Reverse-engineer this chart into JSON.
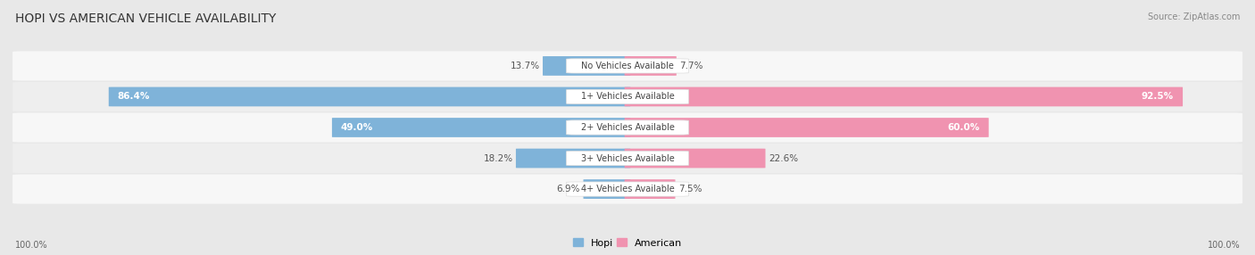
{
  "title": "HOPI VS AMERICAN VEHICLE AVAILABILITY",
  "source": "Source: ZipAtlas.com",
  "categories": [
    "No Vehicles Available",
    "1+ Vehicles Available",
    "2+ Vehicles Available",
    "3+ Vehicles Available",
    "4+ Vehicles Available"
  ],
  "hopi_values": [
    13.7,
    86.4,
    49.0,
    18.2,
    6.9
  ],
  "american_values": [
    7.7,
    92.5,
    60.0,
    22.6,
    7.5
  ],
  "hopi_color": "#7fb3d9",
  "american_color": "#f093b0",
  "bg_color": "#e8e8e8",
  "row_color_odd": "#f7f7f7",
  "row_color_even": "#eeeeee",
  "center_label_bg": "#ffffff",
  "max_value": 100.0,
  "bar_height": 0.62,
  "title_fontsize": 10,
  "label_fontsize": 7.5,
  "category_fontsize": 7,
  "legend_fontsize": 8,
  "footer_fontsize": 7,
  "source_fontsize": 7
}
